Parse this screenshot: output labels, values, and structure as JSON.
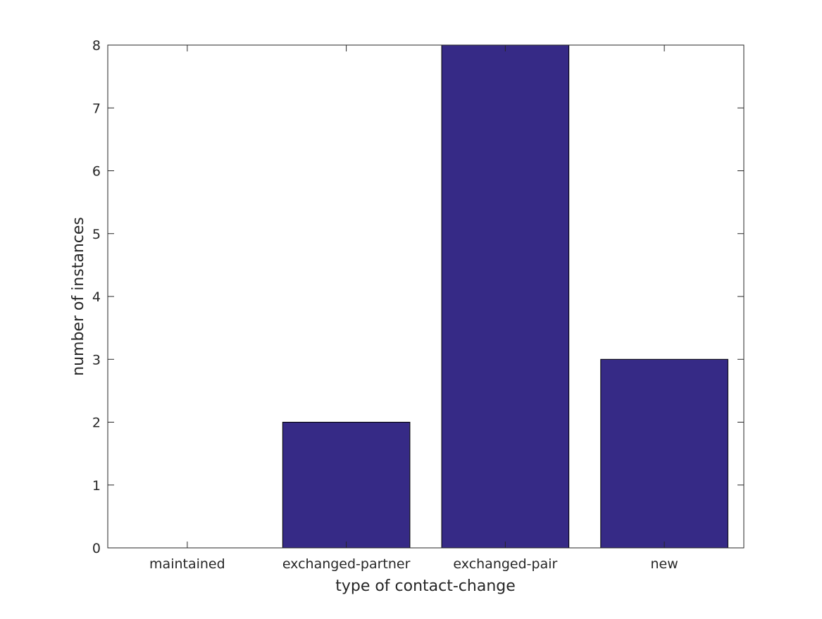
{
  "chart_data": {
    "type": "bar",
    "title": "",
    "xlabel": "type of contact-change",
    "ylabel": "number of instances",
    "categories": [
      "maintained",
      "exchanged-partner",
      "exchanged-pair",
      "new"
    ],
    "values": [
      0,
      2,
      8,
      3
    ],
    "ylim": [
      0,
      8
    ],
    "yticks": [
      0,
      1,
      2,
      3,
      4,
      5,
      6,
      7,
      8
    ],
    "grid": false,
    "legend": "none",
    "bar_color": "#362a86",
    "edge_color": "#000000",
    "axis_color": "#262626"
  }
}
